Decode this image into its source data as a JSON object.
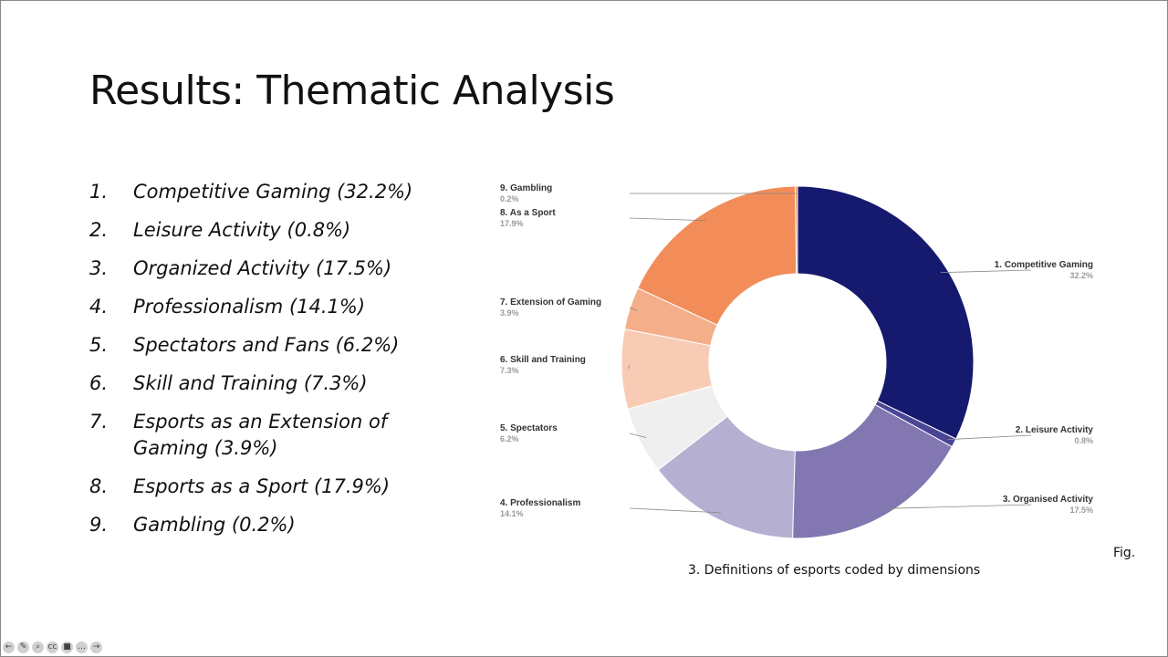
{
  "slide": {
    "title": "Results: Thematic Analysis",
    "themes": [
      {
        "num": "1.",
        "text": "Competitive Gaming (32.2%)"
      },
      {
        "num": "2.",
        "text": "Leisure Activity (0.8%)"
      },
      {
        "num": "3.",
        "text": "Organized Activity (17.5%)"
      },
      {
        "num": "4.",
        "text": "Professionalism (14.1%)"
      },
      {
        "num": "5.",
        "text": "Spectators and Fans (6.2%)"
      },
      {
        "num": "6.",
        "text": "Skill and Training (7.3%)"
      },
      {
        "num": "7.",
        "text": "Esports as an Extension of Gaming (3.9%)"
      },
      {
        "num": "8.",
        "text": "Esports as a Sport (17.9%)"
      },
      {
        "num": "9.",
        "text": "Gambling (0.2%)"
      }
    ],
    "caption": "3. Definitions of esports coded by dimensions",
    "fig_label": "Fig."
  },
  "chart_data": {
    "type": "pie",
    "donut": true,
    "title": "",
    "slices": [
      {
        "label": "1. Competitive Gaming",
        "pct_text": "32.2%",
        "value": 32.2,
        "color": "#151a6f"
      },
      {
        "label": "2. Leisure Activity",
        "pct_text": "0.8%",
        "value": 0.8,
        "color": "#4a4696"
      },
      {
        "label": "3. Organised Activity",
        "pct_text": "17.5%",
        "value": 17.5,
        "color": "#8377b2"
      },
      {
        "label": "4. Professionalism",
        "pct_text": "14.1%",
        "value": 14.1,
        "color": "#b5b0d1"
      },
      {
        "label": "5. Spectators",
        "pct_text": "6.2%",
        "value": 6.2,
        "color": "#efefef"
      },
      {
        "label": "6. Skill and Training",
        "pct_text": "7.3%",
        "value": 7.3,
        "color": "#f8ccb4"
      },
      {
        "label": "7. Extension of Gaming",
        "pct_text": "3.9%",
        "value": 3.9,
        "color": "#f4ae8a"
      },
      {
        "label": "8. As a Sport",
        "pct_text": "17.9%",
        "value": 17.9,
        "color": "#f28d59"
      },
      {
        "label": "9. Gambling",
        "pct_text": "0.2%",
        "value": 0.2,
        "color": "#e8814c"
      }
    ]
  },
  "toolbar": {
    "icons": [
      "back-icon",
      "pen-icon",
      "zoom-icon",
      "captions-icon",
      "camera-icon",
      "more-icon",
      "next-icon"
    ],
    "glyphs": [
      "←",
      "✎",
      "⌕",
      "cc",
      "■",
      "…",
      "→"
    ]
  }
}
